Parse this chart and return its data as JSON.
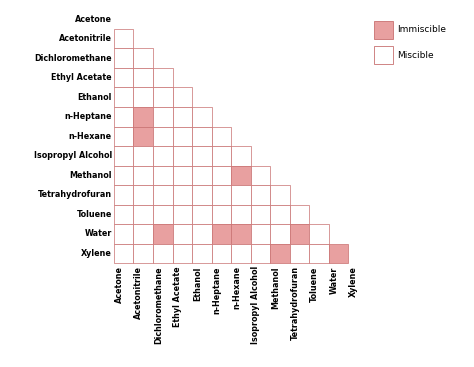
{
  "solvents": [
    "Acetone",
    "Acetonitrile",
    "Dichloromethane",
    "Ethyl Acetate",
    "Ethanol",
    "n-Heptane",
    "n-Hexane",
    "Isopropyl Alcohol",
    "Methanol",
    "Tetrahydrofuran",
    "Toluene",
    "Water",
    "Xylene"
  ],
  "immiscible_pairs": [
    [
      5,
      1
    ],
    [
      6,
      1
    ],
    [
      8,
      6
    ],
    [
      11,
      2
    ],
    [
      11,
      5
    ],
    [
      11,
      6
    ],
    [
      11,
      9
    ],
    [
      12,
      8
    ],
    [
      12,
      11
    ]
  ],
  "miscible_color": "#ffffff",
  "immiscible_color": "#e8a0a0",
  "border_color": "#c87070",
  "background_color": "#ffffff"
}
